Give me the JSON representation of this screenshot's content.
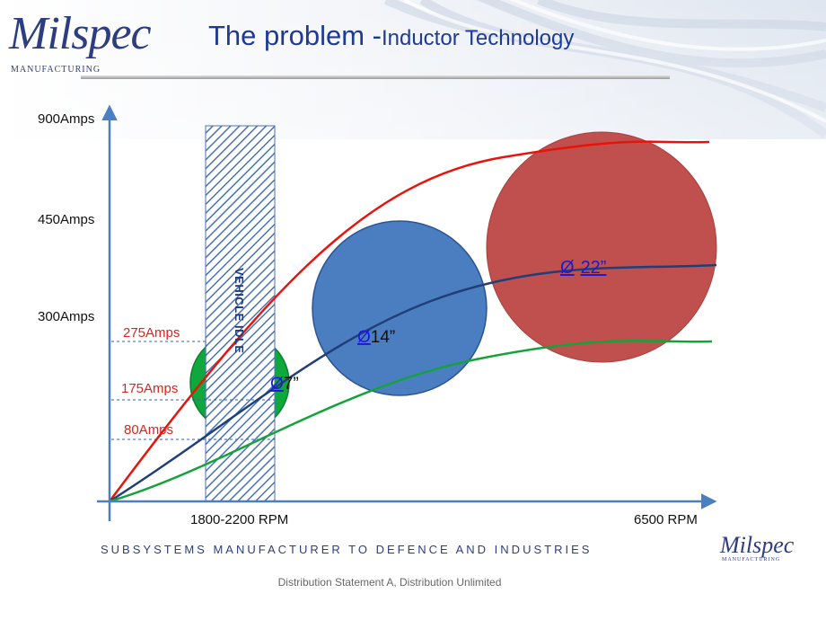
{
  "header": {
    "logo_text": "Milspec",
    "logo_subtext": "MANUFACTURING",
    "title_main": "The problem -",
    "title_sub": "Inductor Technology"
  },
  "chart_data": {
    "type": "diagram",
    "y_axis_labels": [
      "900Amps",
      "450Amps",
      "300Amps"
    ],
    "x_axis_labels": [
      "1800-2200 RPM",
      "6500 RPM"
    ],
    "current_markers": [
      {
        "label": "275Amps",
        "value": 275
      },
      {
        "label": "175Amps",
        "value": 175
      },
      {
        "label": "80Amps",
        "value": 80
      }
    ],
    "idle_band_label": "VEHICLE IDLE",
    "curves": [
      {
        "color": "#e8140c"
      },
      {
        "color": "#1f3f7a"
      },
      {
        "color": "#13a33a"
      }
    ],
    "inductors": [
      {
        "symbol": "Ø",
        "size": "7”",
        "diameter_in": 7,
        "fill": "#0fa83c"
      },
      {
        "symbol": "Ø",
        "size": "14”",
        "diameter_in": 14,
        "fill": "#4b7ec0"
      },
      {
        "symbol": "Ø",
        "size": "22”",
        "diameter_in": 22,
        "fill": "#c0504d"
      }
    ]
  },
  "tagline": "SUBSYSTEMS MANUFACTURER TO DEFENCE AND INDUSTRIES",
  "footer": "Distribution Statement A, Distribution Unlimited"
}
